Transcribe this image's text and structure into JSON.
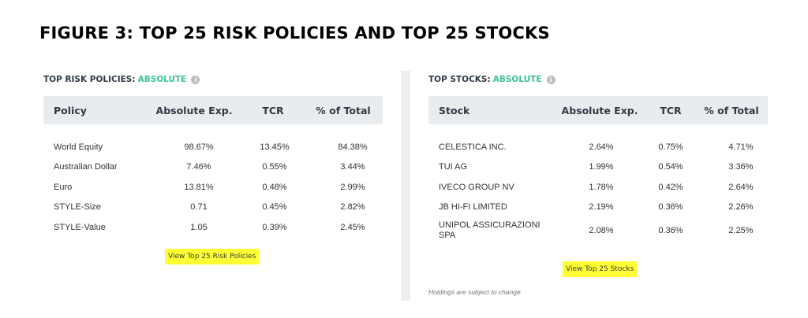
{
  "figure_title": "FIGURE 3: TOP 25 RISK POLICIES AND TOP 25 STOCKS",
  "left_panel": {
    "heading": "TOP RISK POLICIES:",
    "heading_accent": "ABSOLUTE",
    "columns": [
      "Policy",
      "Absolute Exp.",
      "TCR",
      "% of Total"
    ],
    "rows": [
      [
        "World Equity",
        "98.67%",
        "13.45%",
        "84.38%"
      ],
      [
        "Australian Dollar",
        "7.46%",
        "0.55%",
        "3.44%"
      ],
      [
        "Euro",
        "13.81%",
        "0.48%",
        "2.99%"
      ],
      [
        "STYLE-Size",
        "0.71",
        "0.45%",
        "2.82%"
      ],
      [
        "STYLE-Value",
        "1.05",
        "0.39%",
        "2.45%"
      ]
    ],
    "link_label": "View Top 25 Risk Policies"
  },
  "right_panel": {
    "heading": "TOP STOCKS:",
    "heading_accent": "ABSOLUTE",
    "columns": [
      "Stock",
      "Absolute Exp.",
      "TCR",
      "% of Total"
    ],
    "rows": [
      [
        "CELESTICA INC.",
        "2.64%",
        "0.75%",
        "4.71%"
      ],
      [
        "TUI AG",
        "1.99%",
        "0.54%",
        "3.36%"
      ],
      [
        "IVECO GROUP NV",
        "1.78%",
        "0.42%",
        "2.64%"
      ],
      [
        "JB HI-FI LIMITED",
        "2.19%",
        "0.36%",
        "2.26%"
      ],
      [
        "UNIPOL ASSICURAZIONI SPA",
        "2.08%",
        "0.36%",
        "2.25%"
      ]
    ],
    "link_label": "View Top 25 Stocks",
    "footnote": "Holdings are subject to change"
  },
  "colors": {
    "accent": "#3cc29a",
    "header_bg": "#e9ecef",
    "highlight": "#ffff33"
  },
  "icons": {
    "info": "info-icon"
  }
}
